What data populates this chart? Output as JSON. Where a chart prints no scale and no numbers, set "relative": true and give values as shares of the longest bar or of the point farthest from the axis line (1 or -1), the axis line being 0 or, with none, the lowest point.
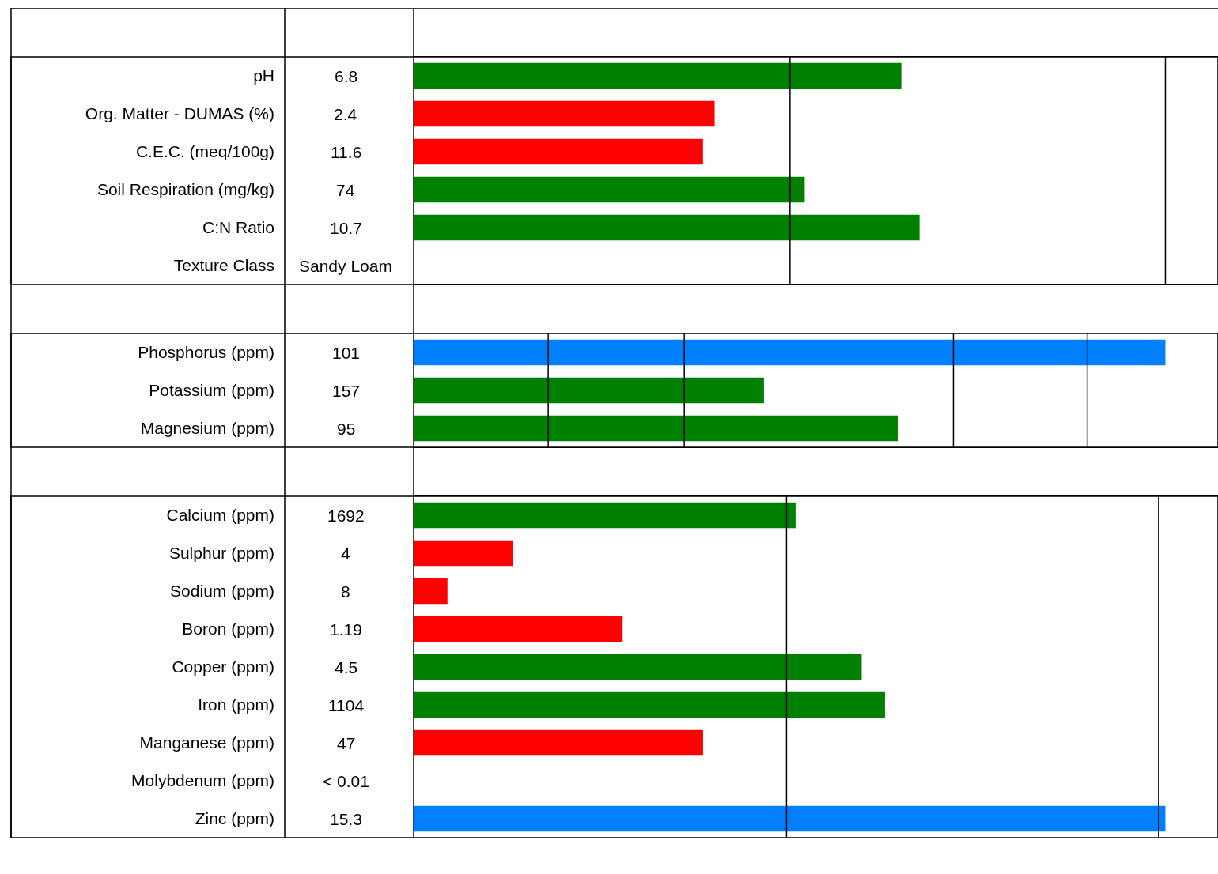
{
  "chart_data": [
    {
      "type": "bar",
      "orientation": "horizontal",
      "relative": true,
      "categories": [
        "pH",
        "Org. Matter - DUMAS (%)",
        "C.E.C. (meq/100g)",
        "Soil Respiration (mg/kg)",
        "C:N Ratio",
        "Texture Class"
      ],
      "values": [
        0.964,
        0.595,
        0.572,
        0.773,
        1,
        null
      ],
      "colors": [
        "#008000",
        "#ff0000",
        "#ff0000",
        "#008000",
        "#008000",
        null
      ],
      "annotations": [
        "6.8",
        "2.4",
        "11.6",
        "74",
        "10.7",
        "Sandy Loam"
      ],
      "ref_lines": [
        {
          "axis": "x",
          "value": 0.744,
          "color": "#000000"
        },
        {
          "axis": "x",
          "value": 1.486,
          "color": "#000000"
        }
      ]
    },
    {
      "type": "bar",
      "orientation": "horizontal",
      "relative": true,
      "categories": [
        "Phosphorus (ppm)",
        "Potassium (ppm)",
        "Magnesium (ppm)"
      ],
      "values": [
        1,
        0.466,
        0.644
      ],
      "colors": [
        "#0080ff",
        "#008000",
        "#008000"
      ],
      "annotations": [
        "101",
        "157",
        "95"
      ],
      "ref_lines": [
        {
          "axis": "x",
          "value": 0.179,
          "color": "#000000"
        },
        {
          "axis": "x",
          "value": 0.36,
          "color": "#000000"
        },
        {
          "axis": "x",
          "value": 0.718,
          "color": "#000000"
        },
        {
          "axis": "x",
          "value": 0.896,
          "color": "#000000"
        }
      ]
    },
    {
      "type": "bar",
      "orientation": "horizontal",
      "relative": true,
      "categories": [
        "Calcium (ppm)",
        "Sulphur (ppm)",
        "Sodium (ppm)",
        "Boron (ppm)",
        "Copper (ppm)",
        "Iron (ppm)",
        "Manganese (ppm)",
        "Molybdenum (ppm)",
        "Zinc (ppm)"
      ],
      "values": [
        0.508,
        0.132,
        0.045,
        0.278,
        0.596,
        0.627,
        0.385,
        null,
        1
      ],
      "colors": [
        "#008000",
        "#ff0000",
        "#ff0000",
        "#ff0000",
        "#008000",
        "#008000",
        "#ff0000",
        null,
        "#0080ff"
      ],
      "annotations": [
        "1692",
        "4",
        "8",
        "1.19",
        "4.5",
        "1104",
        "47",
        "< 0.01",
        "15.3"
      ],
      "ref_lines": [
        {
          "axis": "x",
          "value": 0.496,
          "color": "#000000"
        },
        {
          "axis": "x",
          "value": 0.991,
          "color": "#000000"
        }
      ]
    }
  ]
}
